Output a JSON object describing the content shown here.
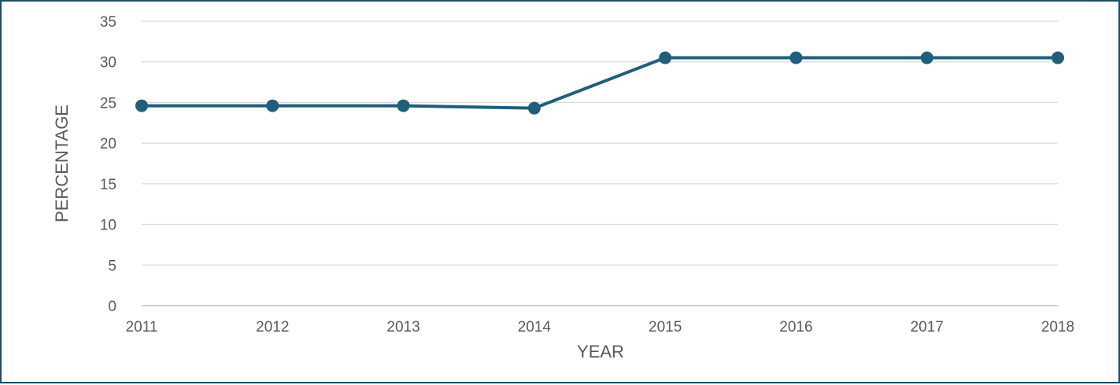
{
  "chart_data": {
    "type": "line",
    "title": "",
    "xlabel": "YEAR",
    "ylabel": "PERCENTAGE",
    "categories": [
      "2011",
      "2012",
      "2013",
      "2014",
      "2015",
      "2016",
      "2017",
      "2018"
    ],
    "series": [
      {
        "values": [
          24.6,
          24.6,
          24.6,
          24.3,
          30.5,
          30.5,
          30.5,
          30.5
        ],
        "color": "#1f5f7a"
      }
    ],
    "ylim": [
      0,
      35
    ],
    "yticks": [
      "0",
      "5",
      "10",
      "15",
      "20",
      "25",
      "30",
      "35"
    ],
    "grid": true,
    "legend": "none",
    "markers": true
  }
}
